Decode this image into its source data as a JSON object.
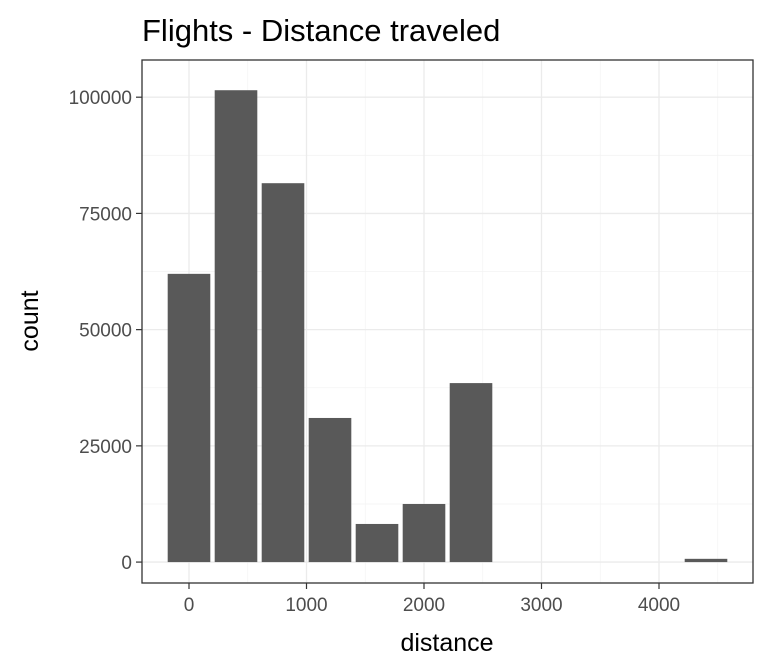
{
  "chart_data": {
    "type": "bar",
    "title": "Flights - Distance traveled",
    "xlabel": "distance",
    "ylabel": "count",
    "x_ticks": [
      0,
      1000,
      2000,
      3000,
      4000
    ],
    "x_tick_labels": [
      "0",
      "1000",
      "2000",
      "3000",
      "4000"
    ],
    "y_ticks": [
      0,
      25000,
      50000,
      75000,
      100000
    ],
    "y_tick_labels": [
      "0",
      "25000",
      "50000",
      "75000",
      "100000"
    ],
    "xlim": [
      -400,
      4800
    ],
    "ylim": [
      -4500,
      108000
    ],
    "bin_width": 400,
    "bins": [
      {
        "center": 0,
        "count": 62000
      },
      {
        "center": 400,
        "count": 101500
      },
      {
        "center": 800,
        "count": 81500
      },
      {
        "center": 1200,
        "count": 31000
      },
      {
        "center": 1600,
        "count": 8200
      },
      {
        "center": 2000,
        "count": 12500
      },
      {
        "center": 2400,
        "count": 38500
      },
      {
        "center": 4400,
        "count": 700
      }
    ],
    "bar_color": "#595959",
    "grid": true,
    "theme": "bw"
  }
}
